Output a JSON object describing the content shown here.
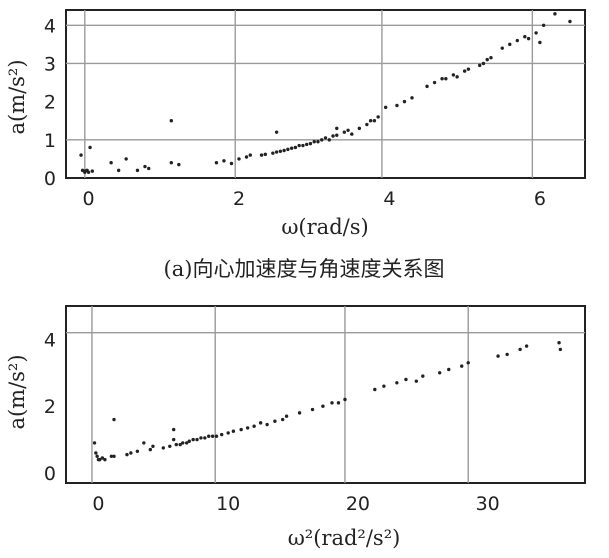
{
  "chart_data": [
    {
      "type": "scatter",
      "title": "",
      "caption": "(a)向心加速度与角速度关系图",
      "xlabel": "ω(rad/s)",
      "ylabel": "a(m/s²)",
      "xlim": [
        -0.3,
        6.6
      ],
      "ylim": [
        0,
        4.4
      ],
      "xticks": [
        0,
        2,
        4,
        6
      ],
      "xtick_labels": [
        "0",
        "2",
        "4",
        "6"
      ],
      "yticks": [
        0,
        1,
        2,
        3,
        4
      ],
      "ytick_labels": [
        "0",
        "1",
        "2",
        "3",
        "4"
      ],
      "grid": true,
      "grid_x": [
        -0.05,
        1.95,
        3.9,
        5.9
      ],
      "grid_y": [
        1,
        3,
        4
      ],
      "series": [
        {
          "x": [
            -0.1,
            -0.05,
            0.0,
            -0.08,
            0.02,
            -0.05,
            0.05,
            -0.02,
            0.3,
            0.4,
            0.5,
            0.65,
            0.75,
            0.8,
            1.1,
            1.1,
            1.2,
            1.7,
            1.8,
            1.9,
            2.0,
            2.1,
            2.15,
            2.3,
            2.35,
            2.45,
            2.5,
            2.55,
            2.6,
            2.65,
            2.7,
            2.75,
            2.8,
            2.85,
            2.9,
            2.95,
            3.0,
            3.05,
            3.1,
            3.15,
            3.2,
            3.25,
            3.3,
            3.4,
            3.45,
            3.5,
            3.6,
            3.7,
            3.75,
            3.8,
            3.85,
            3.95,
            4.1,
            4.2,
            4.3,
            4.5,
            4.6,
            4.7,
            4.75,
            4.85,
            4.9,
            5.0,
            5.05,
            5.2,
            5.25,
            5.3,
            5.35,
            5.5,
            5.6,
            5.7,
            5.8,
            5.85,
            5.95,
            6.0,
            6.05,
            6.2,
            6.4,
            2.5,
            3.3
          ],
          "y": [
            0.6,
            0.18,
            0.15,
            0.2,
            0.8,
            0.15,
            0.18,
            0.2,
            0.4,
            0.2,
            0.5,
            0.2,
            0.3,
            0.25,
            1.5,
            0.4,
            0.35,
            0.4,
            0.45,
            0.38,
            0.5,
            0.55,
            0.6,
            0.6,
            0.62,
            0.65,
            0.68,
            0.7,
            0.72,
            0.75,
            0.78,
            0.8,
            0.85,
            0.85,
            0.88,
            0.9,
            0.95,
            0.95,
            1.0,
            1.05,
            1.0,
            1.1,
            1.12,
            1.2,
            1.25,
            1.15,
            1.3,
            1.4,
            1.5,
            1.5,
            1.6,
            1.85,
            1.9,
            2.0,
            2.1,
            2.4,
            2.5,
            2.6,
            2.6,
            2.7,
            2.65,
            2.8,
            2.85,
            2.95,
            3.0,
            3.1,
            3.15,
            3.4,
            3.5,
            3.6,
            3.7,
            3.65,
            3.8,
            3.55,
            4.0,
            4.3,
            4.1,
            1.2,
            1.3
          ]
        }
      ]
    },
    {
      "type": "scatter",
      "title": "",
      "caption": "",
      "xlabel": "ω²(rad²/s²)",
      "ylabel": "a(m/s²)",
      "xlim": [
        -2.5,
        37.5
      ],
      "ylim": [
        -0.3,
        5.0
      ],
      "xticks": [
        0,
        10,
        20,
        30
      ],
      "xtick_labels": [
        "0",
        "10",
        "20",
        "30"
      ],
      "yticks": [
        0,
        2,
        4
      ],
      "ytick_labels": [
        "0",
        "2",
        "4"
      ],
      "grid": true,
      "grid_x": [
        -0.5,
        9.0,
        19.0,
        28.5
      ],
      "grid_y": [
        4.2
      ],
      "series": [
        {
          "x": [
            -0.3,
            -0.2,
            0.0,
            0.1,
            0.3,
            -0.1,
            0.5,
            1.0,
            1.2,
            2.2,
            2.5,
            3.0,
            3.5,
            4.0,
            4.2,
            5.0,
            5.5,
            5.8,
            6.0,
            6.3,
            6.5,
            6.8,
            7.0,
            7.3,
            7.6,
            7.9,
            8.2,
            8.5,
            8.8,
            9.1,
            9.5,
            10.0,
            10.4,
            11.0,
            11.5,
            12.0,
            12.5,
            13.0,
            13.6,
            14.2,
            14.5,
            15.5,
            16.5,
            17.3,
            18.0,
            18.5,
            19.0,
            21.3,
            22.0,
            23.0,
            23.7,
            24.5,
            25.0,
            26.3,
            27.0,
            28.0,
            28.5,
            30.8,
            31.5,
            32.5,
            33.0,
            35.5,
            35.6,
            1.2,
            5.8
          ],
          "y": [
            0.9,
            0.6,
            0.4,
            0.4,
            0.45,
            0.5,
            0.4,
            0.5,
            0.5,
            0.55,
            0.6,
            0.65,
            0.9,
            0.7,
            0.8,
            0.75,
            0.8,
            1.3,
            0.85,
            0.85,
            0.9,
            0.9,
            0.95,
            1.0,
            1.0,
            1.05,
            1.05,
            1.1,
            1.1,
            1.1,
            1.15,
            1.2,
            1.25,
            1.3,
            1.35,
            1.4,
            1.5,
            1.45,
            1.55,
            1.6,
            1.7,
            1.8,
            1.9,
            2.0,
            2.1,
            2.1,
            2.2,
            2.5,
            2.6,
            2.7,
            2.8,
            2.75,
            2.9,
            3.0,
            3.1,
            3.2,
            3.3,
            3.5,
            3.55,
            3.7,
            3.8,
            3.9,
            3.7,
            1.6,
            1.0
          ]
        }
      ]
    }
  ]
}
